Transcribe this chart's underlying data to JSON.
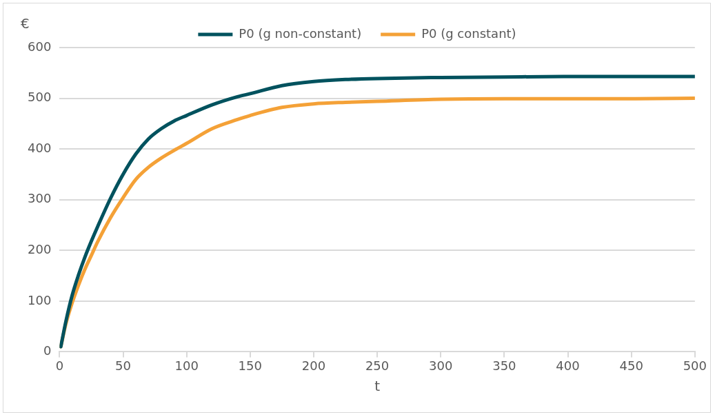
{
  "chart_data": {
    "type": "line",
    "ylabel": "€",
    "xlabel": "t",
    "xlim": [
      0,
      500
    ],
    "xticks": [
      0,
      50,
      100,
      150,
      200,
      250,
      300,
      350,
      400,
      450,
      500
    ],
    "ylim": [
      0,
      600
    ],
    "yticks": [
      0,
      100,
      200,
      300,
      400,
      500,
      600
    ],
    "grid": "y",
    "legend": "top",
    "marker": "none",
    "line_style": "solid",
    "x": [
      1,
      5,
      10,
      15,
      20,
      25,
      30,
      40,
      50,
      60,
      70,
      80,
      90,
      100,
      120,
      140,
      150,
      175,
      200,
      225,
      250,
      300,
      350,
      400,
      450,
      500
    ],
    "series": [
      {
        "name": "P0 (g non-constant)",
        "color": "#00525e",
        "values": [
          10,
          60,
          112,
          152,
          187,
          218,
          247,
          302,
          350,
          390,
          420,
          440,
          455,
          466,
          487,
          503,
          509,
          525,
          533,
          537,
          539,
          541,
          542,
          543,
          543,
          543
        ]
      },
      {
        "name": "P0 (g constant)",
        "color": "#f4a137",
        "values": [
          10,
          55,
          97,
          132,
          163,
          190,
          217,
          264,
          304,
          340,
          364,
          382,
          397,
          411,
          440,
          458,
          466,
          482,
          489,
          492,
          494,
          498,
          499,
          499,
          499,
          500
        ]
      }
    ]
  }
}
